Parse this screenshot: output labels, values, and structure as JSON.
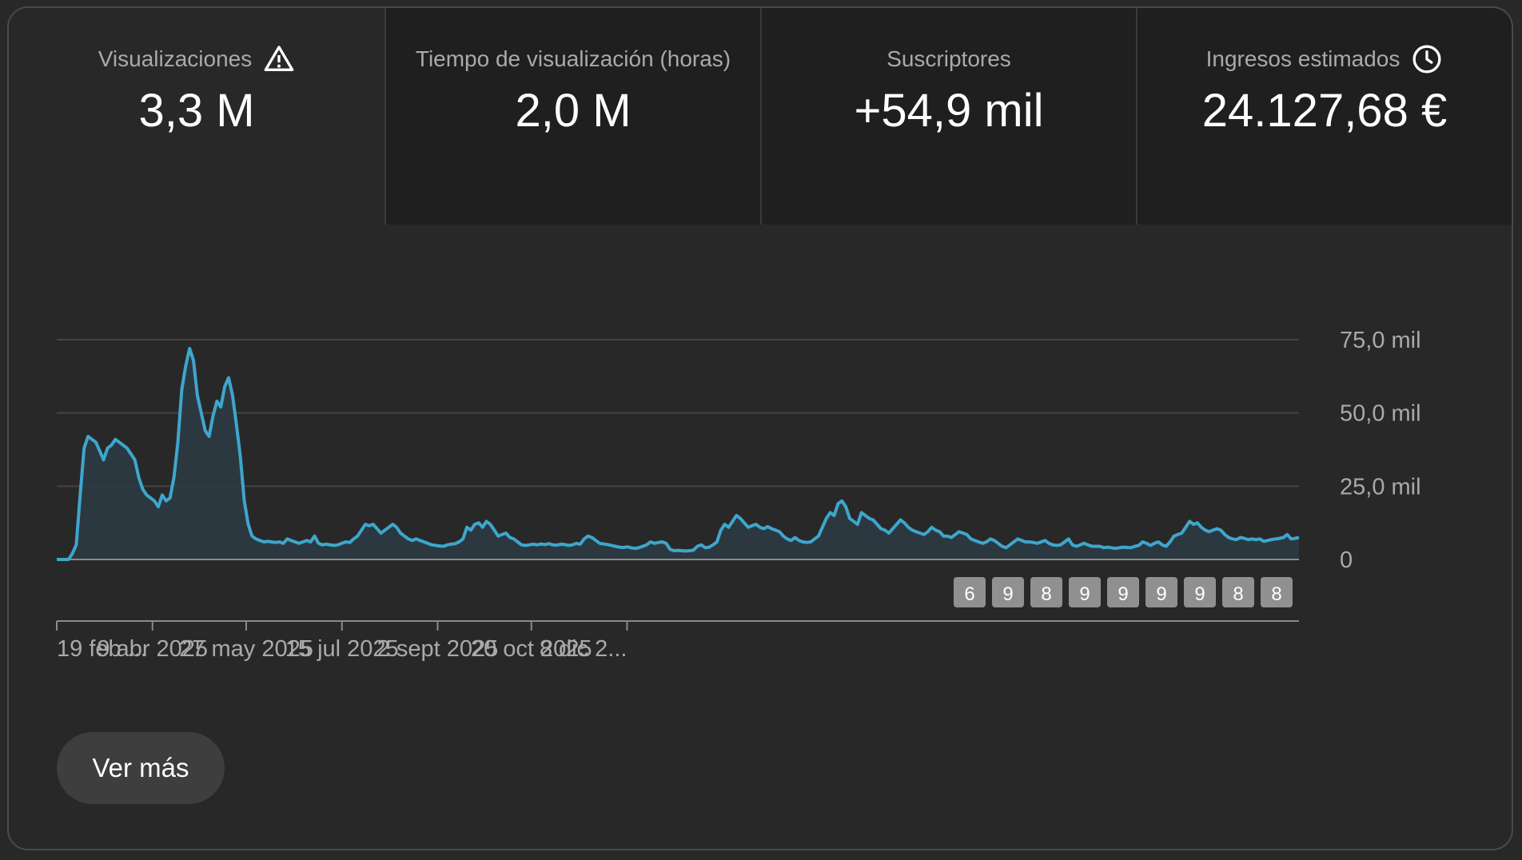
{
  "tabs": [
    {
      "title": "Visualizaciones",
      "value": "3,3 M",
      "icon": "warning-icon"
    },
    {
      "title": "Tiempo de visualización (horas)",
      "value": "2,0 M",
      "icon": ""
    },
    {
      "title": "Suscriptores",
      "value": "+54,9 mil",
      "icon": ""
    },
    {
      "title": "Ingresos estimados",
      "value": "24.127,68 €",
      "icon": "clock-icon"
    }
  ],
  "colors": {
    "line": "#3ea6cc",
    "area": "#2c3a42",
    "grid": "#454545",
    "baseline": "#8a8a8a",
    "text": "#aaaaaa",
    "marker_bg": "#909090",
    "marker_text": "#ffffff"
  },
  "chart_data": {
    "type": "line",
    "title": "",
    "xlabel": "",
    "ylabel": "",
    "x_tick_labels": [
      "19 feb ...",
      "9 abr 2025",
      "27 may 2025",
      "15 jul 2025",
      "2 sept 2025",
      "20 oct 2025",
      "8 dic 2..."
    ],
    "x_tick_positions_day": [
      0,
      49,
      97,
      146,
      195,
      243,
      292
    ],
    "y_tick_labels": [
      "0",
      "25,0 mil",
      "50,0 mil",
      "75,0 mil"
    ],
    "y_ticks": [
      0,
      25000,
      50000,
      75000
    ],
    "ylim": [
      0,
      75000
    ],
    "grid": true,
    "series": [
      {
        "name": "",
        "x_start_label": "19 feb",
        "step_days": 2,
        "values": [
          0,
          0,
          0,
          0,
          2000,
          5000,
          22000,
          38000,
          42000,
          41000,
          40000,
          37000,
          34000,
          38000,
          39000,
          41000,
          40000,
          39000,
          38000,
          36000,
          34000,
          28000,
          24000,
          22000,
          21000,
          20000,
          18000,
          22000,
          20000,
          21000,
          28000,
          40000,
          58000,
          66000,
          72000,
          68000,
          56000,
          50000,
          44000,
          42000,
          49000,
          54000,
          52000,
          59000,
          62000,
          56000,
          46000,
          35000,
          20000,
          12000,
          8000,
          7000,
          6500,
          6000,
          6200,
          6000,
          5800,
          6000,
          5500,
          7000,
          6500,
          6000,
          5500,
          6000,
          6500,
          6000,
          8000,
          5500,
          5000,
          5200,
          5000,
          4800,
          5000,
          5500,
          6000,
          5800,
          7000,
          8000,
          10000,
          12000,
          11500,
          12000,
          10500,
          9000,
          10000,
          11000,
          12000,
          11000,
          9000,
          8000,
          7000,
          6500,
          7000,
          6500,
          6000,
          5500,
          5000,
          4800,
          4600,
          4500,
          5000,
          5200,
          5400,
          6000,
          7000,
          11000,
          10000,
          12000,
          12500,
          11000,
          13000,
          12000,
          10000,
          8000,
          8500,
          9000,
          7500,
          7000,
          6000,
          5000,
          4800,
          5000,
          5200,
          5000,
          5300,
          5100,
          5400,
          5000,
          4900,
          5200,
          5100,
          4800,
          5000,
          5500,
          5200,
          7000,
          8000,
          7500,
          6500,
          5500,
          5300,
          5100,
          4800,
          4500,
          4200,
          4100,
          4300,
          4000,
          3800,
          4000,
          4500,
          5000,
          6000,
          5500,
          5800,
          6000,
          5500,
          3500,
          3000,
          3100,
          3000,
          2900,
          3000,
          3200,
          4500,
          5000,
          4000,
          4200,
          5000,
          6000,
          10000,
          12000,
          11000,
          13000,
          15000,
          14000,
          12500,
          11000,
          11500,
          12000,
          11000,
          10500,
          11200,
          10500,
          10000,
          9500,
          8000,
          7000,
          6500,
          7500,
          6500,
          6000,
          5800,
          6000,
          7000,
          8000,
          11000,
          14000,
          16000,
          15000,
          19000,
          20000,
          18000,
          14000,
          13000,
          12000,
          16000,
          15000,
          14000,
          13500,
          12000,
          10500,
          10000,
          9000,
          10500,
          12000,
          13500,
          12500,
          11000,
          10000,
          9500,
          9000,
          8500,
          9500,
          11000,
          10000,
          9500,
          8000,
          8000,
          7500,
          8500,
          9500,
          9000,
          8500,
          7000,
          6500,
          6000,
          5500,
          6000,
          7000,
          6500,
          5500,
          4500,
          4000,
          5000,
          6000,
          7000,
          6500,
          6000,
          6000,
          5800,
          5500,
          6000,
          6500,
          5500,
          5000,
          4800,
          5000,
          6000,
          7000,
          5000,
          4500,
          5000,
          5500,
          5000,
          4500,
          4500,
          4500,
          4000,
          4200,
          4000,
          3800,
          4000,
          4200,
          4100,
          4000,
          4500,
          4800,
          6000,
          5500,
          4800,
          5500,
          6000,
          5000,
          4500,
          6000,
          8000,
          8500,
          9000,
          11000,
          13000,
          12000,
          12500,
          11000,
          10000,
          9500,
          10000,
          10500,
          10000,
          8500,
          7500,
          7000,
          6800,
          7500,
          7200,
          6800,
          7000,
          6800,
          7000,
          6200,
          6500,
          6800,
          7000,
          7200,
          7500,
          8500,
          7000,
          7200,
          7500
        ]
      }
    ],
    "markers": [
      "6",
      "9",
      "8",
      "9",
      "9",
      "9",
      "9",
      "8",
      "8"
    ]
  },
  "button": {
    "label": "Ver más"
  }
}
